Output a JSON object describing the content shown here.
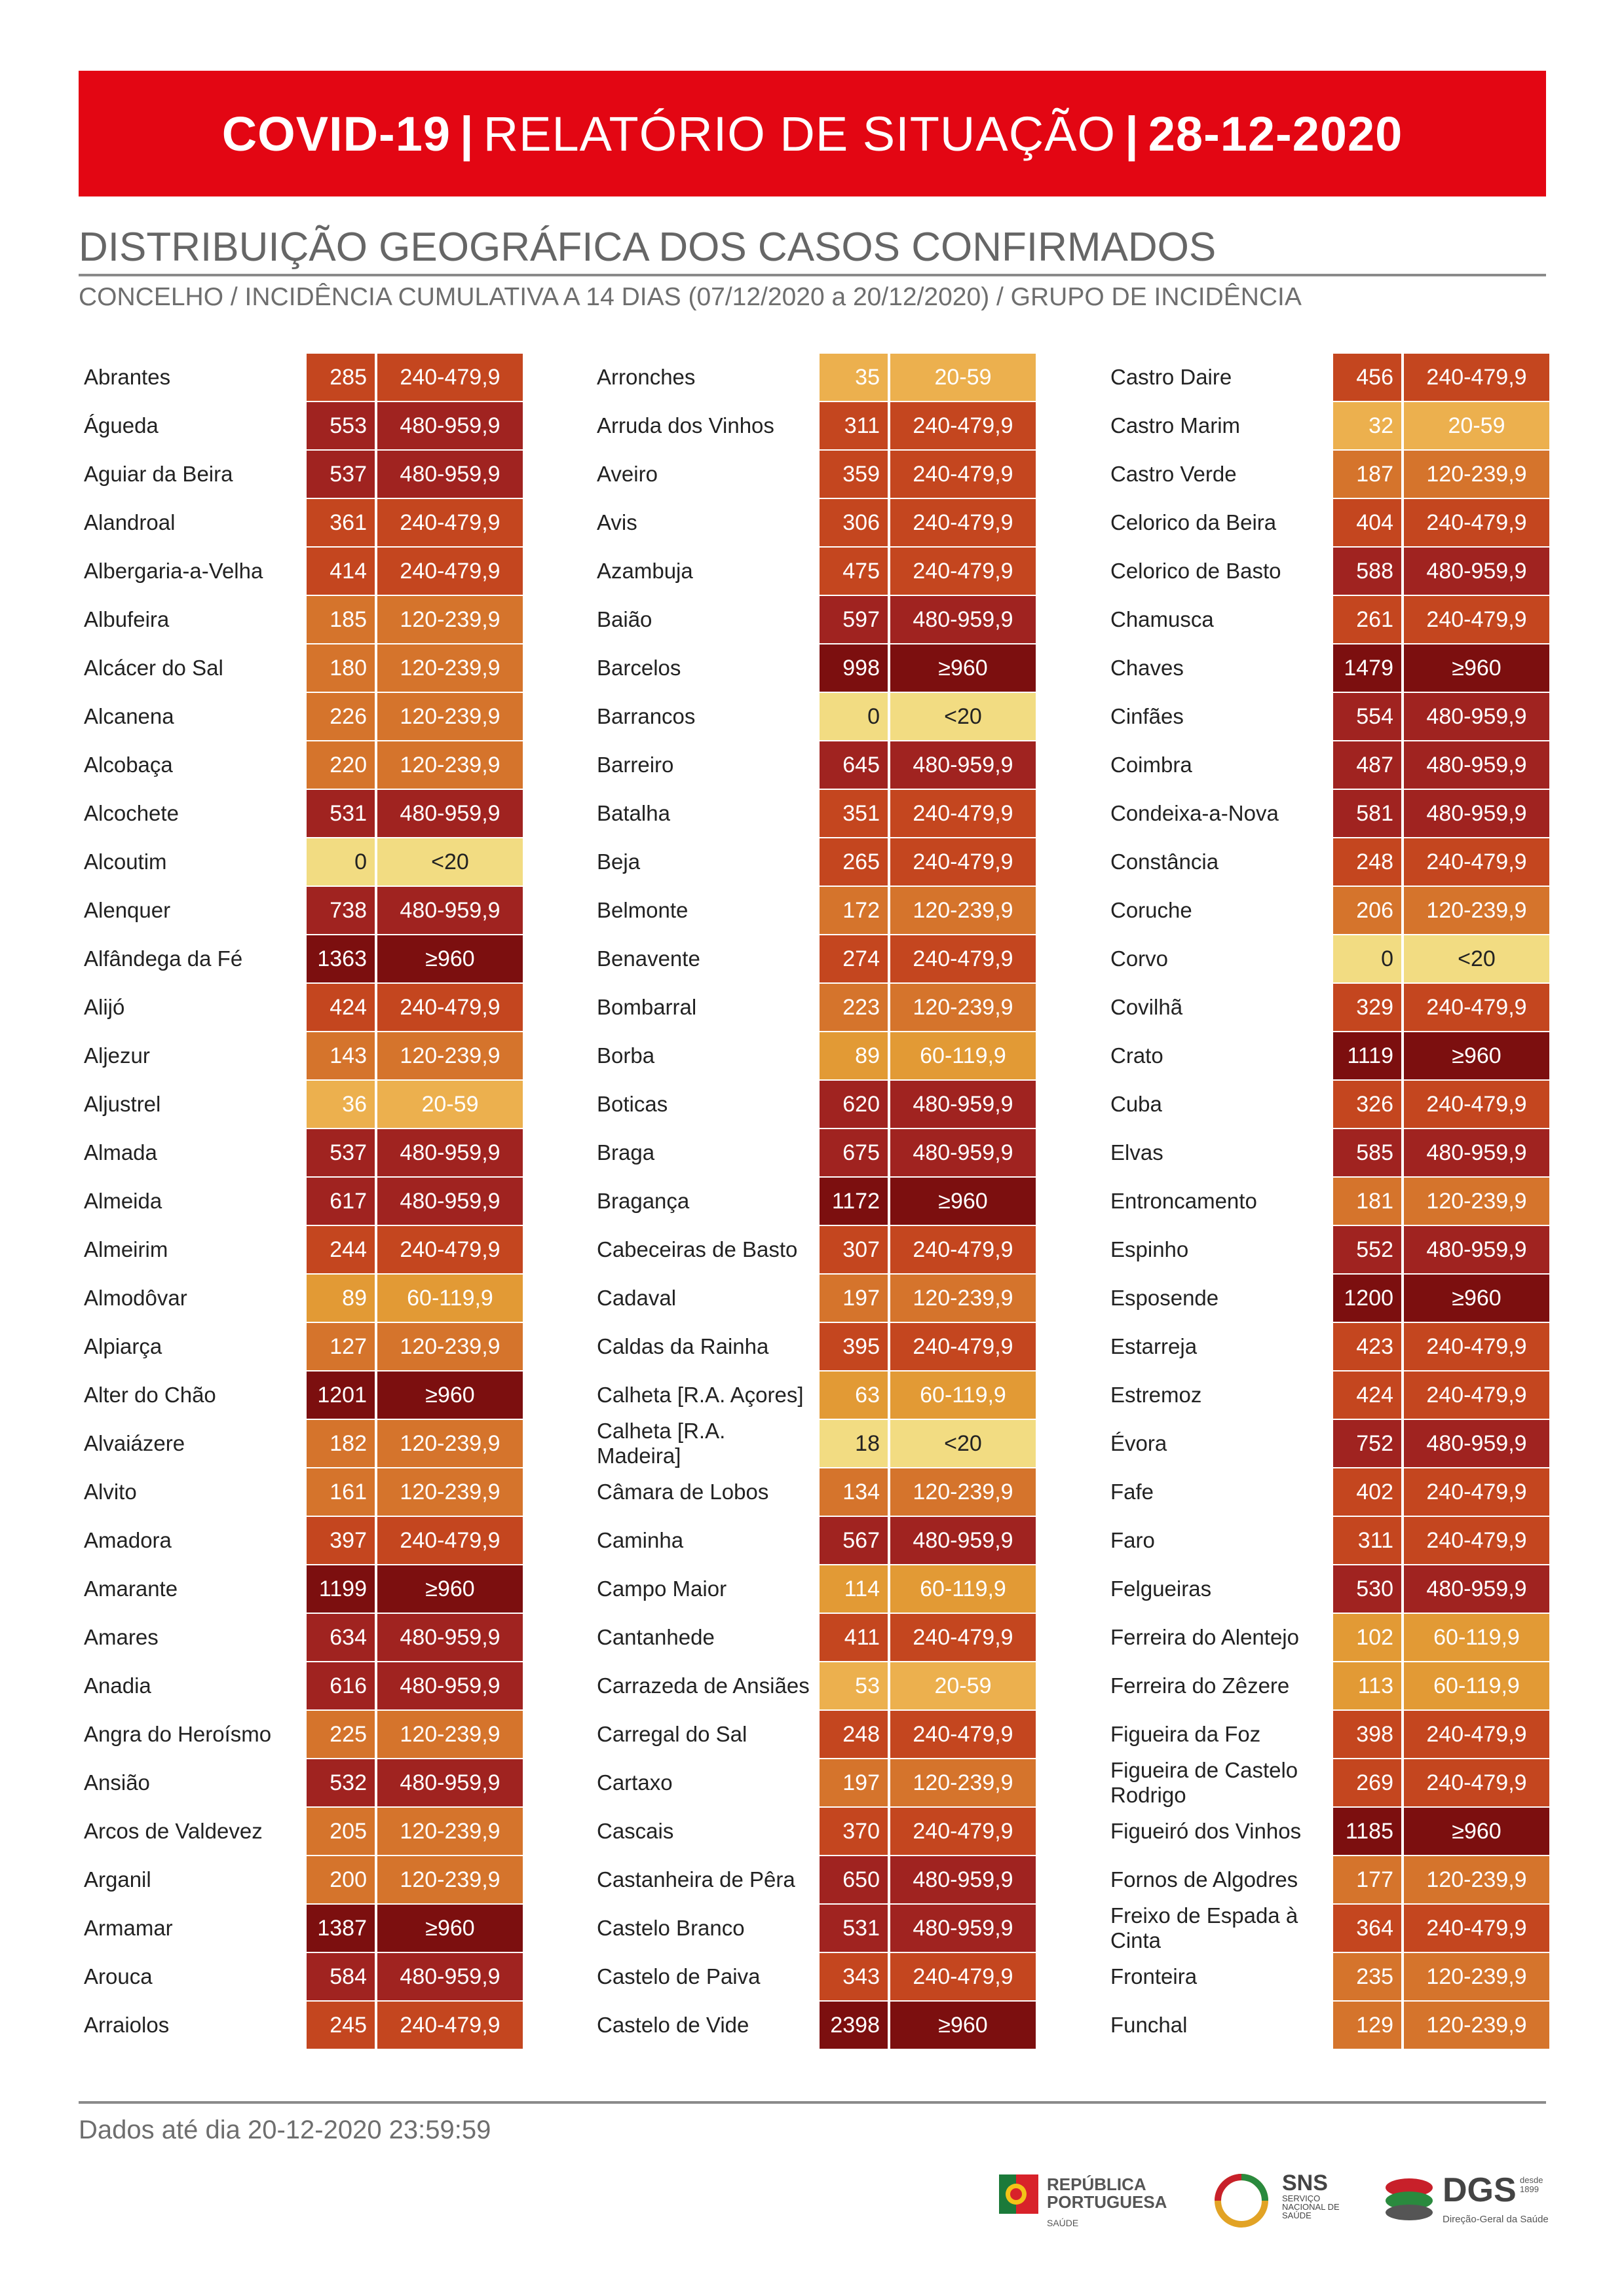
{
  "header": {
    "title_bold": "COVID-19",
    "separator1": "|",
    "title_mid": "RELATÓRIO DE SITUAÇÃO",
    "separator2": "|",
    "title_date": "28-12-2020"
  },
  "section_title": "DISTRIBUIÇÃO GEOGRÁFICA DOS CASOS CONFIRMADOS",
  "subtitle": "CONCELHO / INCIDÊNCIA CUMULATIVA A 14 DIAS (07/12/2020 a 20/12/2020) / GRUPO DE INCIDÊNCIA",
  "group_colors": {
    "<20": "#f2dc82",
    "20-59": "#ecb04e",
    "60-119,9": "#e29a35",
    "120-239,9": "#d5742c",
    "240-479,9": "#c4461f",
    "480-959,9": "#a02320",
    "≥960": "#7c0f0f"
  },
  "columns": [
    [
      {
        "name": "Abrantes",
        "value": "285",
        "group": "240-479,9"
      },
      {
        "name": "Águeda",
        "value": "553",
        "group": "480-959,9"
      },
      {
        "name": "Aguiar da Beira",
        "value": "537",
        "group": "480-959,9"
      },
      {
        "name": "Alandroal",
        "value": "361",
        "group": "240-479,9"
      },
      {
        "name": "Albergaria-a-Velha",
        "value": "414",
        "group": "240-479,9"
      },
      {
        "name": "Albufeira",
        "value": "185",
        "group": "120-239,9"
      },
      {
        "name": "Alcácer do Sal",
        "value": "180",
        "group": "120-239,9"
      },
      {
        "name": "Alcanena",
        "value": "226",
        "group": "120-239,9"
      },
      {
        "name": "Alcobaça",
        "value": "220",
        "group": "120-239,9"
      },
      {
        "name": "Alcochete",
        "value": "531",
        "group": "480-959,9"
      },
      {
        "name": "Alcoutim",
        "value": "0",
        "group": "<20"
      },
      {
        "name": "Alenquer",
        "value": "738",
        "group": "480-959,9"
      },
      {
        "name": "Alfândega da Fé",
        "value": "1363",
        "group": "≥960"
      },
      {
        "name": "Alijó",
        "value": "424",
        "group": "240-479,9"
      },
      {
        "name": "Aljezur",
        "value": "143",
        "group": "120-239,9"
      },
      {
        "name": "Aljustrel",
        "value": "36",
        "group": "20-59"
      },
      {
        "name": "Almada",
        "value": "537",
        "group": "480-959,9"
      },
      {
        "name": "Almeida",
        "value": "617",
        "group": "480-959,9"
      },
      {
        "name": "Almeirim",
        "value": "244",
        "group": "240-479,9"
      },
      {
        "name": "Almodôvar",
        "value": "89",
        "group": "60-119,9"
      },
      {
        "name": "Alpiarça",
        "value": "127",
        "group": "120-239,9"
      },
      {
        "name": "Alter do Chão",
        "value": "1201",
        "group": "≥960"
      },
      {
        "name": "Alvaiázere",
        "value": "182",
        "group": "120-239,9"
      },
      {
        "name": "Alvito",
        "value": "161",
        "group": "120-239,9"
      },
      {
        "name": "Amadora",
        "value": "397",
        "group": "240-479,9"
      },
      {
        "name": "Amarante",
        "value": "1199",
        "group": "≥960"
      },
      {
        "name": "Amares",
        "value": "634",
        "group": "480-959,9"
      },
      {
        "name": "Anadia",
        "value": "616",
        "group": "480-959,9"
      },
      {
        "name": "Angra do Heroísmo",
        "value": "225",
        "group": "120-239,9"
      },
      {
        "name": "Ansião",
        "value": "532",
        "group": "480-959,9"
      },
      {
        "name": "Arcos de Valdevez",
        "value": "205",
        "group": "120-239,9"
      },
      {
        "name": "Arganil",
        "value": "200",
        "group": "120-239,9"
      },
      {
        "name": "Armamar",
        "value": "1387",
        "group": "≥960"
      },
      {
        "name": "Arouca",
        "value": "584",
        "group": "480-959,9"
      },
      {
        "name": "Arraiolos",
        "value": "245",
        "group": "240-479,9"
      }
    ],
    [
      {
        "name": "Arronches",
        "value": "35",
        "group": "20-59"
      },
      {
        "name": "Arruda dos Vinhos",
        "value": "311",
        "group": "240-479,9"
      },
      {
        "name": "Aveiro",
        "value": "359",
        "group": "240-479,9"
      },
      {
        "name": "Avis",
        "value": "306",
        "group": "240-479,9"
      },
      {
        "name": "Azambuja",
        "value": "475",
        "group": "240-479,9"
      },
      {
        "name": "Baião",
        "value": "597",
        "group": "480-959,9"
      },
      {
        "name": "Barcelos",
        "value": "998",
        "group": "≥960"
      },
      {
        "name": "Barrancos",
        "value": "0",
        "group": "<20"
      },
      {
        "name": "Barreiro",
        "value": "645",
        "group": "480-959,9"
      },
      {
        "name": "Batalha",
        "value": "351",
        "group": "240-479,9"
      },
      {
        "name": "Beja",
        "value": "265",
        "group": "240-479,9"
      },
      {
        "name": "Belmonte",
        "value": "172",
        "group": "120-239,9"
      },
      {
        "name": "Benavente",
        "value": "274",
        "group": "240-479,9"
      },
      {
        "name": "Bombarral",
        "value": "223",
        "group": "120-239,9"
      },
      {
        "name": "Borba",
        "value": "89",
        "group": "60-119,9"
      },
      {
        "name": "Boticas",
        "value": "620",
        "group": "480-959,9"
      },
      {
        "name": "Braga",
        "value": "675",
        "group": "480-959,9"
      },
      {
        "name": "Bragança",
        "value": "1172",
        "group": "≥960"
      },
      {
        "name": "Cabeceiras de Basto",
        "value": "307",
        "group": "240-479,9"
      },
      {
        "name": "Cadaval",
        "value": "197",
        "group": "120-239,9"
      },
      {
        "name": "Caldas da Rainha",
        "value": "395",
        "group": "240-479,9"
      },
      {
        "name": "Calheta [R.A. Açores]",
        "value": "63",
        "group": "60-119,9"
      },
      {
        "name": "Calheta [R.A. Madeira]",
        "value": "18",
        "group": "<20"
      },
      {
        "name": "Câmara de Lobos",
        "value": "134",
        "group": "120-239,9"
      },
      {
        "name": "Caminha",
        "value": "567",
        "group": "480-959,9"
      },
      {
        "name": "Campo Maior",
        "value": "114",
        "group": "60-119,9"
      },
      {
        "name": "Cantanhede",
        "value": "411",
        "group": "240-479,9"
      },
      {
        "name": "Carrazeda de Ansiães",
        "value": "53",
        "group": "20-59"
      },
      {
        "name": "Carregal do Sal",
        "value": "248",
        "group": "240-479,9"
      },
      {
        "name": "Cartaxo",
        "value": "197",
        "group": "120-239,9"
      },
      {
        "name": "Cascais",
        "value": "370",
        "group": "240-479,9"
      },
      {
        "name": "Castanheira de Pêra",
        "value": "650",
        "group": "480-959,9"
      },
      {
        "name": "Castelo Branco",
        "value": "531",
        "group": "480-959,9"
      },
      {
        "name": "Castelo de Paiva",
        "value": "343",
        "group": "240-479,9"
      },
      {
        "name": "Castelo de Vide",
        "value": "2398",
        "group": "≥960"
      }
    ],
    [
      {
        "name": "Castro Daire",
        "value": "456",
        "group": "240-479,9"
      },
      {
        "name": "Castro Marim",
        "value": "32",
        "group": "20-59"
      },
      {
        "name": "Castro Verde",
        "value": "187",
        "group": "120-239,9"
      },
      {
        "name": "Celorico da Beira",
        "value": "404",
        "group": "240-479,9"
      },
      {
        "name": "Celorico de Basto",
        "value": "588",
        "group": "480-959,9"
      },
      {
        "name": "Chamusca",
        "value": "261",
        "group": "240-479,9"
      },
      {
        "name": "Chaves",
        "value": "1479",
        "group": "≥960"
      },
      {
        "name": "Cinfães",
        "value": "554",
        "group": "480-959,9"
      },
      {
        "name": "Coimbra",
        "value": "487",
        "group": "480-959,9"
      },
      {
        "name": "Condeixa-a-Nova",
        "value": "581",
        "group": "480-959,9"
      },
      {
        "name": "Constância",
        "value": "248",
        "group": "240-479,9"
      },
      {
        "name": "Coruche",
        "value": "206",
        "group": "120-239,9"
      },
      {
        "name": "Corvo",
        "value": "0",
        "group": "<20"
      },
      {
        "name": "Covilhã",
        "value": "329",
        "group": "240-479,9"
      },
      {
        "name": "Crato",
        "value": "1119",
        "group": "≥960"
      },
      {
        "name": "Cuba",
        "value": "326",
        "group": "240-479,9"
      },
      {
        "name": "Elvas",
        "value": "585",
        "group": "480-959,9"
      },
      {
        "name": "Entroncamento",
        "value": "181",
        "group": "120-239,9"
      },
      {
        "name": "Espinho",
        "value": "552",
        "group": "480-959,9"
      },
      {
        "name": "Esposende",
        "value": "1200",
        "group": "≥960"
      },
      {
        "name": "Estarreja",
        "value": "423",
        "group": "240-479,9"
      },
      {
        "name": "Estremoz",
        "value": "424",
        "group": "240-479,9"
      },
      {
        "name": "Évora",
        "value": "752",
        "group": "480-959,9"
      },
      {
        "name": "Fafe",
        "value": "402",
        "group": "240-479,9"
      },
      {
        "name": "Faro",
        "value": "311",
        "group": "240-479,9"
      },
      {
        "name": "Felgueiras",
        "value": "530",
        "group": "480-959,9"
      },
      {
        "name": "Ferreira do Alentejo",
        "value": "102",
        "group": "60-119,9"
      },
      {
        "name": "Ferreira do Zêzere",
        "value": "113",
        "group": "60-119,9"
      },
      {
        "name": "Figueira da Foz",
        "value": "398",
        "group": "240-479,9"
      },
      {
        "name": "Figueira de Castelo Rodrigo",
        "value": "269",
        "group": "240-479,9"
      },
      {
        "name": "Figueiró dos Vinhos",
        "value": "1185",
        "group": "≥960"
      },
      {
        "name": "Fornos de Algodres",
        "value": "177",
        "group": "120-239,9"
      },
      {
        "name": "Freixo de Espada à Cinta",
        "value": "364",
        "group": "240-479,9"
      },
      {
        "name": "Fronteira",
        "value": "235",
        "group": "120-239,9"
      },
      {
        "name": "Funchal",
        "value": "129",
        "group": "120-239,9"
      }
    ]
  ],
  "footer": {
    "data_note": "Dados até dia 20-12-2020 23:59:59",
    "logo_rp_line1": "REPÚBLICA",
    "logo_rp_line2": "PORTUGUESA",
    "logo_rp_line3": "SAÚDE",
    "logo_sns": "SNS",
    "logo_sns_sub": "SERVIÇO NACIONAL DE SAÚDE",
    "logo_dgs": "DGS",
    "logo_dgs_sub": "Direção-Geral da Saúde",
    "logo_dgs_since": "desde 1899"
  }
}
